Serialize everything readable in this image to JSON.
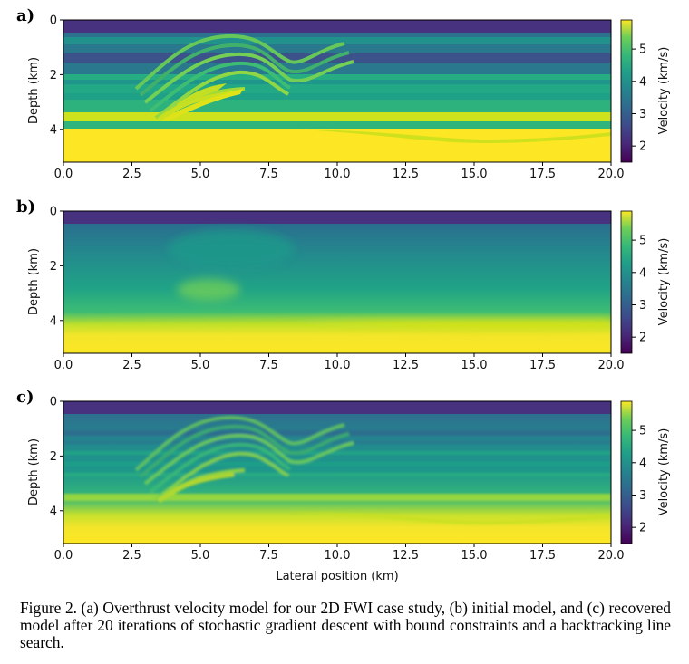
{
  "figure": {
    "caption": "Figure 2.  (a) Overthrust velocity model for our 2D FWI case study, (b) initial model, and (c) recovered model after 20 iterations of stochastic gradient descent with bound constraints and a backtracking line search.",
    "panels": [
      {
        "letter": "a)",
        "kind": "true-model"
      },
      {
        "letter": "b)",
        "kind": "initial-model"
      },
      {
        "letter": "c)",
        "kind": "recovered-model"
      }
    ],
    "xlabel": "Lateral position (km)",
    "ylabel": "Depth (km)",
    "colorbar_label": "Velocity (km/s)",
    "colormap": "viridis"
  },
  "chart_data": [
    {
      "type": "heatmap",
      "panel": "a)",
      "x_ticks": [
        "0.0",
        "2.5",
        "5.0",
        "7.5",
        "10.0",
        "12.5",
        "15.0",
        "17.5",
        "20.0"
      ],
      "y_ticks": [
        "0",
        "2",
        "4"
      ],
      "colorbar_ticks": [
        "2",
        "3",
        "4",
        "5"
      ],
      "xlim": [
        0,
        20
      ],
      "ylim": [
        5.2,
        0
      ],
      "clim": [
        1.5,
        5.9
      ],
      "xlabel": "",
      "ylabel": "Depth (km)",
      "colorbar_label": "Velocity (km/s)",
      "layers_velocity_kms": [
        {
          "top_km": 0.0,
          "bottom_km": 0.45,
          "v": 1.5
        },
        {
          "top_km": 0.45,
          "bottom_km": 0.8,
          "v": 3.7
        },
        {
          "top_km": 0.8,
          "bottom_km": 1.2,
          "v": 3.3
        },
        {
          "top_km": 1.2,
          "bottom_km": 1.55,
          "v": 2.7
        },
        {
          "top_km": 1.55,
          "bottom_km": 2.0,
          "v": 3.4
        },
        {
          "top_km": 2.0,
          "bottom_km": 2.3,
          "v": 4.0
        },
        {
          "top_km": 2.3,
          "bottom_km": 2.7,
          "v": 3.6
        },
        {
          "top_km": 2.7,
          "bottom_km": 3.0,
          "v": 4.2
        },
        {
          "top_km": 3.0,
          "bottom_km": 3.4,
          "v": 3.3
        },
        {
          "top_km": 3.4,
          "bottom_km": 3.7,
          "v": 5.3
        },
        {
          "top_km": 3.7,
          "bottom_km": 3.95,
          "v": 3.4
        },
        {
          "top_km": 3.95,
          "bottom_km": 5.2,
          "v": 5.9
        }
      ]
    },
    {
      "type": "heatmap",
      "panel": "b)",
      "x_ticks": [
        "0.0",
        "2.5",
        "5.0",
        "7.5",
        "10.0",
        "12.5",
        "15.0",
        "17.5",
        "20.0"
      ],
      "y_ticks": [
        "0",
        "2",
        "4"
      ],
      "colorbar_ticks": [
        "2",
        "3",
        "4",
        "5"
      ],
      "xlim": [
        0,
        20
      ],
      "ylim": [
        5.2,
        0
      ],
      "clim": [
        1.5,
        5.9
      ],
      "xlabel": "",
      "ylabel": "Depth (km)",
      "colorbar_label": "Velocity (km/s)",
      "layers_velocity_kms": [
        {
          "top_km": 0.0,
          "bottom_km": 0.45,
          "v": 1.5
        },
        {
          "top_km": 0.45,
          "bottom_km": 5.2,
          "v_top": 3.0,
          "v_bottom": 5.9,
          "smooth": true
        }
      ]
    },
    {
      "type": "heatmap",
      "panel": "c)",
      "x_ticks": [
        "0.0",
        "2.5",
        "5.0",
        "7.5",
        "10.0",
        "12.5",
        "15.0",
        "17.5",
        "20.0"
      ],
      "y_ticks": [
        "0",
        "2",
        "4"
      ],
      "colorbar_ticks": [
        "2",
        "3",
        "4",
        "5"
      ],
      "xlim": [
        0,
        20
      ],
      "ylim": [
        5.2,
        0
      ],
      "clim": [
        1.5,
        5.9
      ],
      "xlabel": "Lateral position (km)",
      "ylabel": "Depth (km)",
      "colorbar_label": "Velocity (km/s)",
      "layers_velocity_kms": [
        {
          "top_km": 0.0,
          "bottom_km": 0.45,
          "v": 1.5
        },
        {
          "top_km": 0.45,
          "bottom_km": 5.2,
          "v_top": 3.2,
          "v_bottom": 5.7,
          "smooth": true
        }
      ]
    }
  ]
}
